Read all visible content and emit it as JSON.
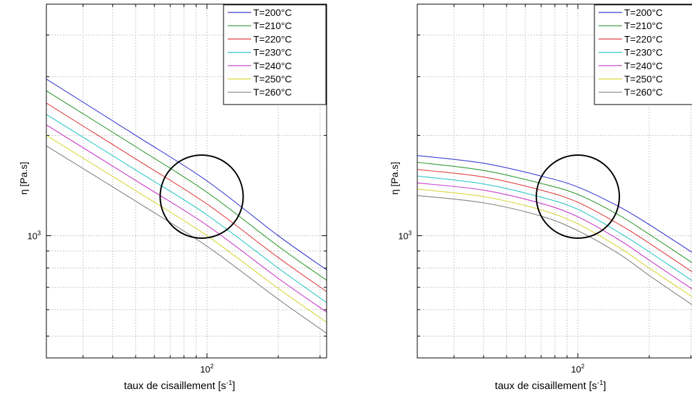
{
  "chart_data": [
    {
      "type": "line",
      "title": "",
      "xlabel_main": "taux de cisaillement [s",
      "xlabel_exp": "-1",
      "xlabel_tail": "]",
      "ylabel": "η [Pa.s]",
      "xscale": "log",
      "yscale": "log",
      "xlim": [
        21,
        320
      ],
      "ylim": [
        430,
        4950
      ],
      "x_tick_labels": [
        {
          "value": 100,
          "base": "10",
          "exp": "2"
        }
      ],
      "y_tick_labels": [
        {
          "value": 1000,
          "base": "10",
          "exp": "3"
        }
      ],
      "grid": true,
      "legend_position": "top-right",
      "annotation": {
        "type": "circle",
        "center": [
          95,
          1310
        ]
      },
      "series": [
        {
          "name": "T=200°C",
          "color": "#3b3bd1",
          "x": [
            21,
            50,
            100,
            200,
            320
          ],
          "y": [
            2950,
            2000,
            1460,
            1000,
            790
          ]
        },
        {
          "name": "T=210°C",
          "color": "#2e9a2e",
          "x": [
            21,
            50,
            100,
            200,
            320
          ],
          "y": [
            2720,
            1850,
            1350,
            930,
            735
          ]
        },
        {
          "name": "T=220°C",
          "color": "#e04040",
          "x": [
            21,
            50,
            100,
            200,
            320
          ],
          "y": [
            2500,
            1700,
            1245,
            860,
            680
          ]
        },
        {
          "name": "T=230°C",
          "color": "#2fc7c7",
          "x": [
            21,
            50,
            100,
            200,
            320
          ],
          "y": [
            2310,
            1575,
            1155,
            800,
            630
          ]
        },
        {
          "name": "T=240°C",
          "color": "#c93ac9",
          "x": [
            21,
            50,
            100,
            200,
            320
          ],
          "y": [
            2150,
            1465,
            1075,
            745,
            590
          ]
        },
        {
          "name": "T=250°C",
          "color": "#d6d63a",
          "x": [
            21,
            50,
            100,
            200,
            320
          ],
          "y": [
            2000,
            1365,
            1000,
            695,
            550
          ]
        },
        {
          "name": "T=260°C",
          "color": "#808080",
          "x": [
            21,
            50,
            100,
            200,
            320
          ],
          "y": [
            1860,
            1270,
            930,
            645,
            510
          ]
        }
      ]
    },
    {
      "type": "line",
      "title": "",
      "xlabel_main": "taux de cisaillement [s",
      "xlabel_exp": "-1",
      "xlabel_tail": "]",
      "ylabel": "η [Pa.s]",
      "xscale": "log",
      "yscale": "log",
      "xlim": [
        21,
        320
      ],
      "ylim": [
        430,
        4950
      ],
      "x_tick_labels": [
        {
          "value": 100,
          "base": "10",
          "exp": "2"
        }
      ],
      "y_tick_labels": [
        {
          "value": 1000,
          "base": "10",
          "exp": "3"
        }
      ],
      "grid": true,
      "legend_position": "top-right",
      "annotation": {
        "type": "circle",
        "center": [
          100,
          1310
        ]
      },
      "series": [
        {
          "name": "T=200°C",
          "color": "#3b3bd1",
          "x": [
            21,
            40,
            70,
            100,
            150,
            200,
            320
          ],
          "y": [
            1740,
            1650,
            1510,
            1400,
            1220,
            1080,
            870
          ]
        },
        {
          "name": "T=210°C",
          "color": "#2e9a2e",
          "x": [
            21,
            40,
            70,
            100,
            150,
            200,
            320
          ],
          "y": [
            1660,
            1570,
            1435,
            1330,
            1150,
            1010,
            810
          ]
        },
        {
          "name": "T=220°C",
          "color": "#e04040",
          "x": [
            21,
            40,
            70,
            100,
            150,
            200,
            320
          ],
          "y": [
            1580,
            1500,
            1370,
            1260,
            1080,
            950,
            760
          ]
        },
        {
          "name": "T=230°C",
          "color": "#2fc7c7",
          "x": [
            21,
            40,
            70,
            100,
            150,
            200,
            320
          ],
          "y": [
            1510,
            1430,
            1305,
            1200,
            1020,
            895,
            715
          ]
        },
        {
          "name": "T=240°C",
          "color": "#c93ac9",
          "x": [
            21,
            40,
            70,
            100,
            150,
            200,
            320
          ],
          "y": [
            1440,
            1370,
            1250,
            1140,
            970,
            845,
            675
          ]
        },
        {
          "name": "T=250°C",
          "color": "#d6d63a",
          "x": [
            21,
            40,
            70,
            100,
            150,
            200,
            320
          ],
          "y": [
            1380,
            1310,
            1195,
            1085,
            920,
            800,
            640
          ]
        },
        {
          "name": "T=260°C",
          "color": "#808080",
          "x": [
            21,
            40,
            70,
            100,
            150,
            200,
            320
          ],
          "y": [
            1320,
            1255,
            1145,
            1035,
            880,
            760,
            605
          ]
        }
      ]
    }
  ]
}
